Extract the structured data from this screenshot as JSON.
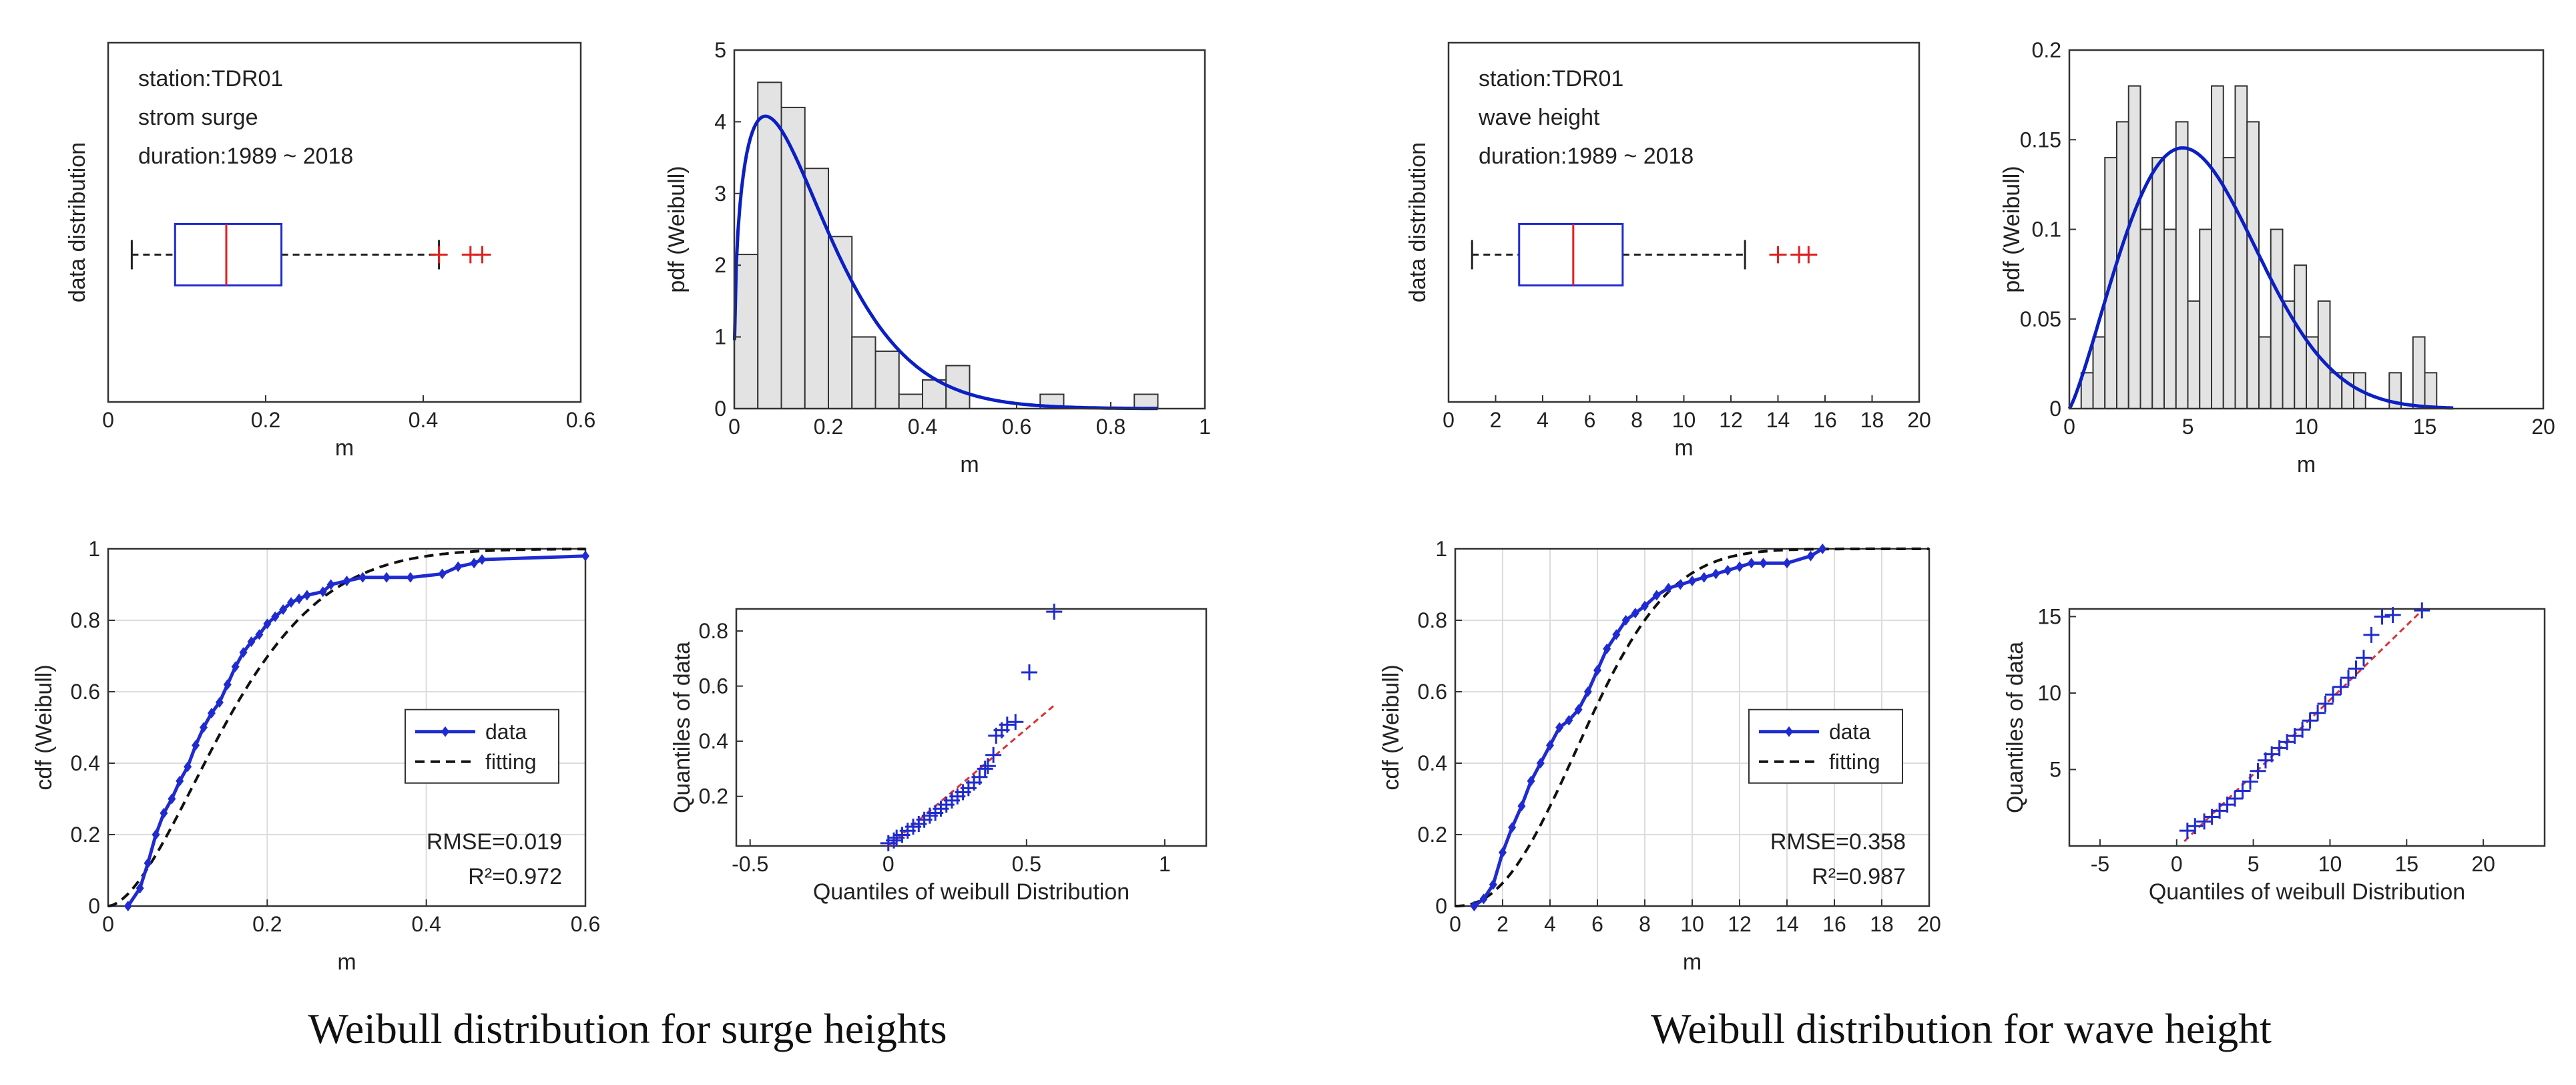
{
  "captions": {
    "left": "Weibull distribution for surge heights",
    "right": "Weibull distribution for wave height"
  },
  "colors": {
    "data_blue": "#1f2bd0",
    "fit_blue": "#0b1fc4",
    "median_red": "#e02020",
    "outlier_red": "#e02020",
    "bar_fill": "#e3e3e3",
    "ref_line_red": "#e03030",
    "grid": "#dcdcdc"
  },
  "chart_data": [
    {
      "id": "surge-box",
      "type": "boxplot",
      "xlabel": "m",
      "ylabel": "data distribution",
      "xlim": [
        0,
        0.6
      ],
      "xticks": [
        0,
        0.2,
        0.4,
        0.6
      ],
      "xticklabels": [
        "0",
        "0.2",
        "0.4",
        "0.6"
      ],
      "annotation": [
        "station:TDR01",
        "strom surge",
        "duration:1989 ~ 2018"
      ],
      "box": {
        "whisker_low": 0.03,
        "q1": 0.085,
        "median": 0.15,
        "q3": 0.22,
        "whisker_high": 0.42
      },
      "outliers": [
        0.42,
        0.46,
        0.475
      ]
    },
    {
      "id": "surge-pdf",
      "type": "bar",
      "xlabel": "m",
      "ylabel": "pdf (Weibull)",
      "xlim": [
        0,
        1
      ],
      "ylim": [
        0,
        5
      ],
      "xticks": [
        0,
        0.2,
        0.4,
        0.6,
        0.8,
        1
      ],
      "xticklabels": [
        "0",
        "0.2",
        "0.4",
        "0.6",
        "0.8",
        "1"
      ],
      "yticks": [
        0,
        1,
        2,
        3,
        4,
        5
      ],
      "yticklabels": [
        "0",
        "1",
        "2",
        "3",
        "4",
        "5"
      ],
      "bins": [
        {
          "x0": 0.0,
          "x1": 0.05,
          "h": 2.15
        },
        {
          "x0": 0.05,
          "x1": 0.1,
          "h": 4.55
        },
        {
          "x0": 0.1,
          "x1": 0.15,
          "h": 4.2
        },
        {
          "x0": 0.15,
          "x1": 0.2,
          "h": 3.35
        },
        {
          "x0": 0.2,
          "x1": 0.25,
          "h": 2.4
        },
        {
          "x0": 0.25,
          "x1": 0.3,
          "h": 1.0
        },
        {
          "x0": 0.3,
          "x1": 0.35,
          "h": 0.8
        },
        {
          "x0": 0.35,
          "x1": 0.4,
          "h": 0.2
        },
        {
          "x0": 0.4,
          "x1": 0.45,
          "h": 0.4
        },
        {
          "x0": 0.45,
          "x1": 0.5,
          "h": 0.6
        },
        {
          "x0": 0.5,
          "x1": 0.55,
          "h": 0.0
        },
        {
          "x0": 0.55,
          "x1": 0.6,
          "h": 0.0
        },
        {
          "x0": 0.6,
          "x1": 0.65,
          "h": 0.0
        },
        {
          "x0": 0.65,
          "x1": 0.7,
          "h": 0.2
        },
        {
          "x0": 0.7,
          "x1": 0.75,
          "h": 0.0
        },
        {
          "x0": 0.75,
          "x1": 0.8,
          "h": 0.0
        },
        {
          "x0": 0.8,
          "x1": 0.85,
          "h": 0.0
        },
        {
          "x0": 0.85,
          "x1": 0.9,
          "h": 0.2
        }
      ],
      "fit": {
        "type": "weibull_pdf",
        "k": 1.35,
        "lambda": 0.18,
        "x_max": 0.9
      }
    },
    {
      "id": "surge-cdf",
      "type": "line",
      "xlabel": "m",
      "ylabel": "cdf (Weibull)",
      "xlim": [
        0,
        0.6
      ],
      "ylim": [
        0,
        1
      ],
      "xticks": [
        0,
        0.2,
        0.4,
        0.6
      ],
      "xticklabels": [
        "0",
        "0.2",
        "0.4",
        "0.6"
      ],
      "yticks": [
        0,
        0.2,
        0.4,
        0.6,
        0.8,
        1
      ],
      "yticklabels": [
        "0",
        "0.2",
        "0.4",
        "0.6",
        "0.8",
        "1"
      ],
      "grid": true,
      "legend": [
        "data",
        "fitting"
      ],
      "legend_position": "right-middle",
      "stats": [
        "RMSE=0.019",
        "R²=0.972"
      ],
      "series": [
        {
          "name": "data",
          "x": [
            0.025,
            0.04,
            0.05,
            0.06,
            0.07,
            0.08,
            0.09,
            0.1,
            0.11,
            0.12,
            0.13,
            0.14,
            0.15,
            0.16,
            0.17,
            0.18,
            0.19,
            0.2,
            0.21,
            0.22,
            0.23,
            0.24,
            0.25,
            0.27,
            0.28,
            0.3,
            0.32,
            0.35,
            0.38,
            0.42,
            0.44,
            0.46,
            0.47,
            0.6
          ],
          "y": [
            0.0,
            0.05,
            0.12,
            0.2,
            0.26,
            0.3,
            0.35,
            0.39,
            0.45,
            0.5,
            0.54,
            0.57,
            0.62,
            0.67,
            0.71,
            0.74,
            0.76,
            0.79,
            0.81,
            0.83,
            0.85,
            0.86,
            0.87,
            0.88,
            0.9,
            0.91,
            0.92,
            0.92,
            0.92,
            0.93,
            0.95,
            0.96,
            0.97,
            0.98
          ]
        },
        {
          "name": "fitting",
          "fit": {
            "type": "weibull_cdf",
            "k": 1.7,
            "lambda": 0.18
          }
        }
      ]
    },
    {
      "id": "surge-qq",
      "type": "scatter",
      "xlabel": "Quantiles of weibull Distribution",
      "ylabel": "Quantiles of data",
      "xlim": [
        -0.55,
        1.15
      ],
      "ylim": [
        0.02,
        0.88
      ],
      "xticks": [
        -0.5,
        0,
        0.5,
        1
      ],
      "xticklabels": [
        "-0.5",
        "0",
        "0.5",
        "1"
      ],
      "yticks": [
        0.2,
        0.4,
        0.6,
        0.8
      ],
      "yticklabels": [
        "0.2",
        "0.4",
        "0.6",
        "0.8"
      ],
      "points": [
        [
          0.0,
          0.03
        ],
        [
          0.02,
          0.04
        ],
        [
          0.03,
          0.05
        ],
        [
          0.05,
          0.06
        ],
        [
          0.07,
          0.075
        ],
        [
          0.09,
          0.09
        ],
        [
          0.11,
          0.1
        ],
        [
          0.13,
          0.115
        ],
        [
          0.15,
          0.13
        ],
        [
          0.17,
          0.14
        ],
        [
          0.19,
          0.155
        ],
        [
          0.21,
          0.17
        ],
        [
          0.23,
          0.185
        ],
        [
          0.25,
          0.2
        ],
        [
          0.27,
          0.215
        ],
        [
          0.29,
          0.23
        ],
        [
          0.31,
          0.25
        ],
        [
          0.33,
          0.27
        ],
        [
          0.35,
          0.3
        ],
        [
          0.36,
          0.31
        ],
        [
          0.38,
          0.35
        ],
        [
          0.39,
          0.42
        ],
        [
          0.41,
          0.44
        ],
        [
          0.43,
          0.46
        ],
        [
          0.46,
          0.47
        ],
        [
          0.51,
          0.65
        ],
        [
          0.6,
          0.87
        ]
      ],
      "ref_line": [
        [
          0.0,
          0.02
        ],
        [
          0.6,
          0.53
        ]
      ]
    },
    {
      "id": "wave-box",
      "type": "boxplot",
      "xlabel": "m",
      "ylabel": "data distribution",
      "xlim": [
        0,
        20
      ],
      "xticks": [
        0,
        2,
        4,
        6,
        8,
        10,
        12,
        14,
        16,
        18,
        20
      ],
      "xticklabels": [
        "0",
        "2",
        "4",
        "6",
        "8",
        "10",
        "12",
        "14",
        "16",
        "18",
        "20"
      ],
      "annotation": [
        "station:TDR01",
        "wave height",
        "duration:1989 ~ 2018"
      ],
      "box": {
        "whisker_low": 1.0,
        "q1": 3.0,
        "median": 5.3,
        "q3": 7.4,
        "whisker_high": 12.6
      },
      "outliers": [
        14.0,
        14.9,
        15.3
      ]
    },
    {
      "id": "wave-pdf",
      "type": "bar",
      "xlabel": "m",
      "ylabel": "pdf (Weibull)",
      "xlim": [
        0,
        20
      ],
      "ylim": [
        0,
        0.2
      ],
      "xticks": [
        0,
        5,
        10,
        15,
        20
      ],
      "xticklabels": [
        "0",
        "5",
        "10",
        "15",
        "20"
      ],
      "yticks": [
        0,
        0.05,
        0.1,
        0.15,
        0.2
      ],
      "yticklabels": [
        "0",
        "0.05",
        "0.1",
        "0.15",
        "0.2"
      ],
      "bins": [
        {
          "x0": 0.5,
          "x1": 1.0,
          "h": 0.02
        },
        {
          "x0": 1.0,
          "x1": 1.5,
          "h": 0.04
        },
        {
          "x0": 1.5,
          "x1": 2.0,
          "h": 0.14
        },
        {
          "x0": 2.0,
          "x1": 2.5,
          "h": 0.16
        },
        {
          "x0": 2.5,
          "x1": 3.0,
          "h": 0.18
        },
        {
          "x0": 3.0,
          "x1": 3.5,
          "h": 0.1
        },
        {
          "x0": 3.5,
          "x1": 4.0,
          "h": 0.14
        },
        {
          "x0": 4.0,
          "x1": 4.5,
          "h": 0.1
        },
        {
          "x0": 4.5,
          "x1": 5.0,
          "h": 0.16
        },
        {
          "x0": 5.0,
          "x1": 5.5,
          "h": 0.06
        },
        {
          "x0": 5.5,
          "x1": 6.0,
          "h": 0.1
        },
        {
          "x0": 6.0,
          "x1": 6.5,
          "h": 0.18
        },
        {
          "x0": 6.5,
          "x1": 7.0,
          "h": 0.14
        },
        {
          "x0": 7.0,
          "x1": 7.5,
          "h": 0.18
        },
        {
          "x0": 7.5,
          "x1": 8.0,
          "h": 0.16
        },
        {
          "x0": 8.0,
          "x1": 8.5,
          "h": 0.04
        },
        {
          "x0": 8.5,
          "x1": 9.0,
          "h": 0.1
        },
        {
          "x0": 9.0,
          "x1": 9.5,
          "h": 0.06
        },
        {
          "x0": 9.5,
          "x1": 10.0,
          "h": 0.08
        },
        {
          "x0": 10.0,
          "x1": 10.5,
          "h": 0.04
        },
        {
          "x0": 10.5,
          "x1": 11.0,
          "h": 0.06
        },
        {
          "x0": 11.0,
          "x1": 11.5,
          "h": 0.02
        },
        {
          "x0": 11.5,
          "x1": 12.0,
          "h": 0.02
        },
        {
          "x0": 12.0,
          "x1": 12.5,
          "h": 0.02
        },
        {
          "x0": 12.5,
          "x1": 13.0,
          "h": 0.0
        },
        {
          "x0": 13.0,
          "x1": 13.5,
          "h": 0.0
        },
        {
          "x0": 13.5,
          "x1": 14.0,
          "h": 0.02
        },
        {
          "x0": 14.0,
          "x1": 14.5,
          "h": 0.0
        },
        {
          "x0": 14.5,
          "x1": 15.0,
          "h": 0.04
        },
        {
          "x0": 15.0,
          "x1": 15.5,
          "h": 0.02
        }
      ],
      "fit": {
        "type": "weibull_pdf",
        "k": 2.2,
        "lambda": 6.3,
        "x_max": 16.2
      }
    },
    {
      "id": "wave-cdf",
      "type": "line",
      "xlabel": "m",
      "ylabel": "cdf (Weibull)",
      "xlim": [
        0,
        20
      ],
      "ylim": [
        0,
        1
      ],
      "xticks": [
        0,
        2,
        4,
        6,
        8,
        10,
        12,
        14,
        16,
        18,
        20
      ],
      "xticklabels": [
        "0",
        "2",
        "4",
        "6",
        "8",
        "10",
        "12",
        "14",
        "16",
        "18",
        "20"
      ],
      "yticks": [
        0,
        0.2,
        0.4,
        0.6,
        0.8,
        1
      ],
      "yticklabels": [
        "0",
        "0.2",
        "0.4",
        "0.6",
        "0.8",
        "1"
      ],
      "grid": true,
      "legend": [
        "data",
        "fitting"
      ],
      "legend_position": "right-middle",
      "stats": [
        "RMSE=0.358",
        "R²=0.987"
      ],
      "series": [
        {
          "name": "data",
          "x": [
            0.8,
            1.2,
            1.6,
            2.0,
            2.4,
            2.8,
            3.2,
            3.6,
            4.0,
            4.4,
            4.8,
            5.2,
            5.6,
            6.0,
            6.4,
            6.8,
            7.2,
            7.6,
            8.0,
            8.5,
            9.0,
            9.5,
            10.0,
            10.5,
            11.0,
            11.5,
            12.0,
            12.5,
            13.0,
            14.0,
            15.0,
            15.5
          ],
          "y": [
            0.0,
            0.02,
            0.06,
            0.15,
            0.22,
            0.28,
            0.35,
            0.4,
            0.45,
            0.5,
            0.52,
            0.55,
            0.6,
            0.66,
            0.72,
            0.76,
            0.8,
            0.82,
            0.84,
            0.87,
            0.89,
            0.9,
            0.91,
            0.92,
            0.93,
            0.94,
            0.95,
            0.96,
            0.96,
            0.96,
            0.98,
            1.0
          ]
        },
        {
          "name": "fitting",
          "fit": {
            "type": "weibull_cdf",
            "k": 2.3,
            "lambda": 6.5
          }
        }
      ]
    },
    {
      "id": "wave-qq",
      "type": "scatter",
      "xlabel": "Quantiles of weibull Distribution",
      "ylabel": "Quantiles of data",
      "xlim": [
        -7,
        24
      ],
      "ylim": [
        0,
        15.5
      ],
      "xticks": [
        -5,
        0,
        5,
        10,
        15,
        20
      ],
      "xticklabels": [
        "-5",
        "0",
        "5",
        "10",
        "15",
        "20"
      ],
      "yticks": [
        5,
        10,
        15
      ],
      "yticklabels": [
        "5",
        "10",
        "15"
      ],
      "points": [
        [
          0.7,
          1.0
        ],
        [
          1.2,
          1.3
        ],
        [
          1.8,
          1.6
        ],
        [
          2.3,
          1.9
        ],
        [
          2.8,
          2.3
        ],
        [
          3.3,
          2.7
        ],
        [
          3.8,
          3.1
        ],
        [
          4.3,
          3.6
        ],
        [
          4.8,
          4.2
        ],
        [
          5.3,
          4.9
        ],
        [
          5.8,
          5.6
        ],
        [
          6.2,
          6.0
        ],
        [
          6.7,
          6.4
        ],
        [
          7.2,
          6.8
        ],
        [
          7.7,
          7.2
        ],
        [
          8.2,
          7.6
        ],
        [
          8.7,
          8.2
        ],
        [
          9.2,
          8.7
        ],
        [
          9.7,
          9.3
        ],
        [
          10.2,
          9.9
        ],
        [
          10.7,
          10.4
        ],
        [
          11.2,
          11.0
        ],
        [
          11.7,
          11.6
        ],
        [
          12.2,
          12.3
        ],
        [
          12.7,
          13.8
        ],
        [
          13.4,
          15.0
        ],
        [
          14.1,
          15.1
        ],
        [
          16.0,
          15.4
        ]
      ],
      "ref_line": [
        [
          0.5,
          0.3
        ],
        [
          16.0,
          15.4
        ]
      ]
    }
  ]
}
